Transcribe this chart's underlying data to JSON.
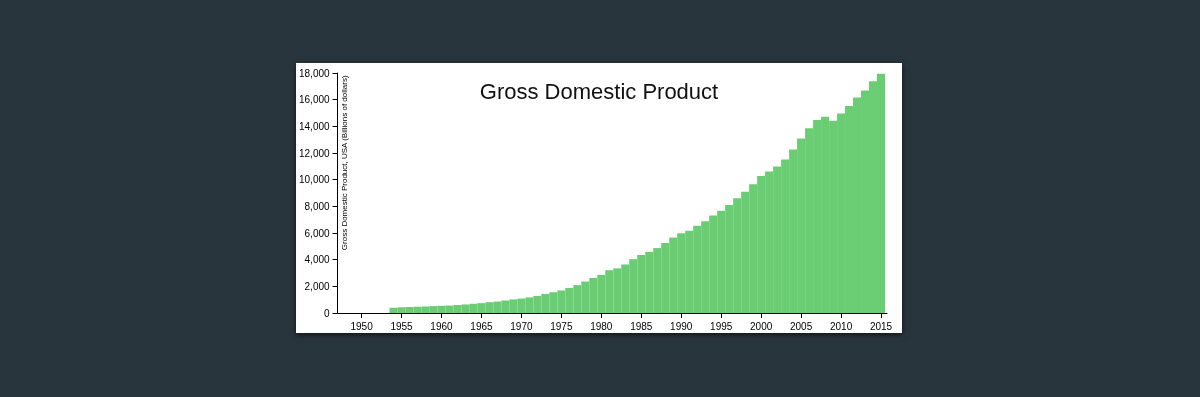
{
  "chart_data": {
    "type": "bar",
    "title": "Gross Domestic Product",
    "ylabel": "Gross Domestic Product, USA (Billions of dollars)",
    "color": "#6acd74",
    "x": [
      "1954",
      "1955",
      "1956",
      "1957",
      "1958",
      "1959",
      "1960",
      "1961",
      "1962",
      "1963",
      "1964",
      "1965",
      "1966",
      "1967",
      "1968",
      "1969",
      "1970",
      "1971",
      "1972",
      "1973",
      "1974",
      "1975",
      "1976",
      "1977",
      "1978",
      "1979",
      "1980",
      "1981",
      "1982",
      "1983",
      "1984",
      "1985",
      "1986",
      "1987",
      "1988",
      "1989",
      "1990",
      "1991",
      "1992",
      "1993",
      "1994",
      "1995",
      "1996",
      "1997",
      "1998",
      "1999",
      "2000",
      "2001",
      "2002",
      "2003",
      "2004",
      "2005",
      "2006",
      "2007",
      "2008",
      "2009",
      "2010",
      "2011",
      "2012",
      "2013",
      "2014",
      "2015"
    ],
    "values": [
      390,
      430,
      450,
      470,
      480,
      520,
      540,
      560,
      600,
      640,
      690,
      740,
      810,
      860,
      940,
      1020,
      1080,
      1170,
      1280,
      1430,
      1550,
      1690,
      1880,
      2090,
      2360,
      2630,
      2860,
      3210,
      3350,
      3640,
      4040,
      4350,
      4590,
      4870,
      5250,
      5660,
      5980,
      6170,
      6540,
      6880,
      7310,
      7660,
      8100,
      8610,
      9090,
      9660,
      10280,
      10620,
      10980,
      11510,
      12270,
      13090,
      13860,
      14480,
      14720,
      14420,
      14960,
      15520,
      16160,
      16690,
      17390,
      17950
    ],
    "xlim": [
      "1947-01",
      "2015-10"
    ],
    "xticks": [
      "1950",
      "1955",
      "1960",
      "1965",
      "1970",
      "1975",
      "1980",
      "1985",
      "1990",
      "1995",
      "2000",
      "2005",
      "2010",
      "2015"
    ],
    "ylim": [
      0,
      18000
    ],
    "yticks": [
      0,
      {
        "value": 2000,
        "label": "2,000"
      },
      {
        "value": 4000,
        "label": "4,000"
      },
      {
        "value": 6000,
        "label": "6,000"
      },
      {
        "value": 8000,
        "label": "8,000"
      },
      {
        "value": 10000,
        "label": "10,000"
      },
      {
        "value": 12000,
        "label": "12,000"
      },
      {
        "value": 14000,
        "label": "14,000"
      },
      {
        "value": 16000,
        "label": "16,000"
      },
      {
        "value": 18000,
        "label": "18,000"
      }
    ]
  }
}
